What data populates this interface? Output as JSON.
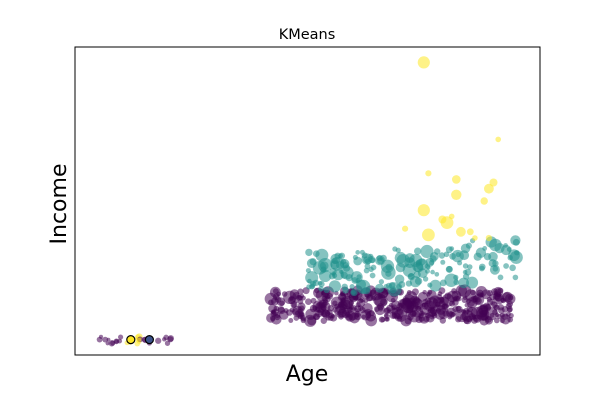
{
  "chart_data": {
    "type": "scatter",
    "title": "KMeans",
    "xlabel": "Age",
    "ylabel": "Income",
    "xticks": "none",
    "yticks": "none",
    "grid": false,
    "legend": "none",
    "colormap": "viridis",
    "cluster_colors": {
      "0": "#440154",
      "1": "#21918c",
      "2": "#fde725"
    },
    "xlim": [
      0,
      100
    ],
    "ylim": [
      0,
      100
    ],
    "points": [],
    "centroids": [
      {
        "x": 12,
        "y": 5,
        "cluster": 2
      },
      {
        "x": 16,
        "y": 5,
        "cluster": 0
      }
    ]
  }
}
